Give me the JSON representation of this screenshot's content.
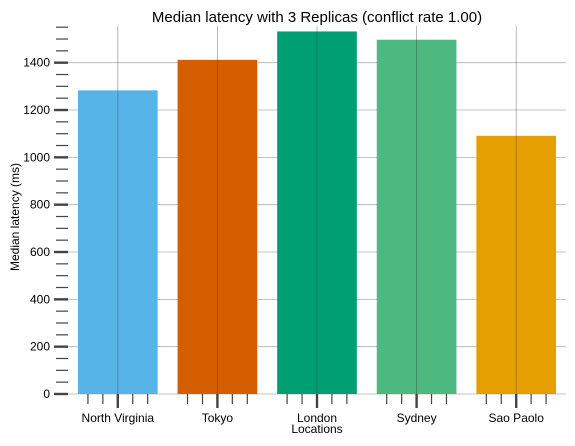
{
  "chart_data": {
    "type": "bar",
    "title": "Median latency with 3 Replicas (conflict rate 1.00)",
    "xlabel": "Locations",
    "ylabel": "Median latency (ms)",
    "categories": [
      "North Virginia",
      "Tokyo",
      "London",
      "Sydney",
      "Sao Paolo"
    ],
    "values": [
      1283,
      1412,
      1532,
      1497,
      1091
    ],
    "colors": [
      "#56b4e9",
      "#d55e00",
      "#009e73",
      "#4db87f",
      "#e69f00"
    ],
    "ylim": [
      0,
      1555
    ],
    "yticks": [
      0,
      200,
      400,
      600,
      800,
      1000,
      1200,
      1400
    ],
    "grid": true,
    "legend": "none"
  }
}
